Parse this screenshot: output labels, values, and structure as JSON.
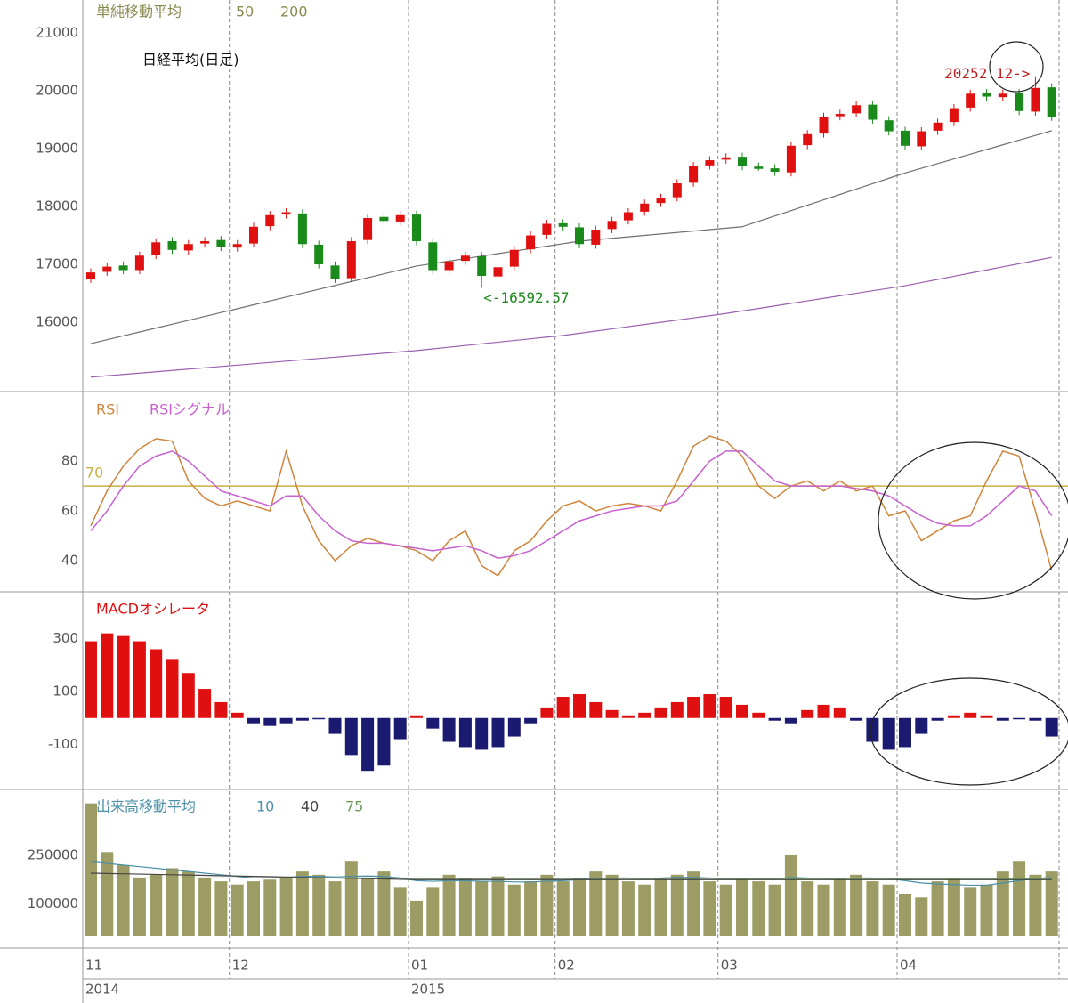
{
  "chart_data": [
    {
      "type": "candlestick",
      "title": "日経平均(日足)",
      "legend_title": "単純移動平均",
      "open": [
        16750,
        16870,
        16980,
        16900,
        17160,
        17400,
        17240,
        17360,
        17420,
        17290,
        17360,
        17660,
        17860,
        17880,
        17340,
        16980,
        16760,
        17420,
        17820,
        17740,
        17860,
        17380,
        16900,
        17060,
        17140,
        16790,
        16960,
        17260,
        17510,
        17710,
        17640,
        17340,
        17610,
        17760,
        17910,
        18060,
        18160,
        18410,
        18710,
        18810,
        18860,
        18690,
        18660,
        18590,
        19060,
        19260,
        19560,
        19610,
        19760,
        19490,
        19310,
        19040,
        19310,
        19460,
        19710,
        19960,
        19890,
        19960,
        19640,
        20060
      ],
      "high": [
        16930,
        17030,
        17050,
        17220,
        17450,
        17470,
        17420,
        17470,
        17490,
        17420,
        17720,
        17920,
        17970,
        17950,
        17410,
        17050,
        17470,
        17870,
        17890,
        17920,
        17930,
        17450,
        17120,
        17220,
        17210,
        17020,
        17320,
        17570,
        17770,
        17780,
        17710,
        17670,
        17820,
        17970,
        18120,
        18220,
        18470,
        18770,
        18870,
        18920,
        18930,
        18760,
        18730,
        19120,
        19320,
        19620,
        19670,
        19820,
        19830,
        19560,
        19380,
        19370,
        19520,
        19770,
        20020,
        20030,
        20020,
        20030,
        20252.12,
        20130
      ],
      "low": [
        16680,
        16800,
        16830,
        16830,
        17090,
        17180,
        17170,
        17290,
        17230,
        17220,
        17290,
        17590,
        17790,
        17280,
        16930,
        16680,
        16690,
        17350,
        17680,
        17670,
        17330,
        16830,
        16830,
        16990,
        16592.57,
        16720,
        16890,
        17190,
        17440,
        17580,
        17280,
        17270,
        17540,
        17690,
        17840,
        17990,
        18090,
        18340,
        18640,
        18740,
        18630,
        18620,
        18530,
        18520,
        18990,
        19190,
        19490,
        19540,
        19430,
        19230,
        18980,
        18970,
        19240,
        19390,
        19640,
        19830,
        19820,
        19580,
        19570,
        19480
      ],
      "close": [
        16860,
        16960,
        16900,
        17150,
        17380,
        17250,
        17350,
        17400,
        17300,
        17350,
        17650,
        17850,
        17900,
        17350,
        17000,
        16750,
        17400,
        17800,
        17750,
        17850,
        17400,
        16900,
        17050,
        17150,
        16800,
        16950,
        17250,
        17500,
        17700,
        17650,
        17350,
        17600,
        17750,
        17900,
        18050,
        18150,
        18400,
        18700,
        18800,
        18850,
        18700,
        18650,
        18600,
        19050,
        19250,
        19550,
        19600,
        19750,
        19500,
        19300,
        19050,
        19300,
        19450,
        19700,
        19950,
        19900,
        19950,
        19650,
        20050,
        19550
      ],
      "up_color": "#e01010",
      "down_color": "#1a8a1a",
      "ylim": [
        14800,
        21570
      ],
      "yticks": [
        16000,
        17000,
        18000,
        19000,
        20000,
        21000
      ],
      "series": [
        {
          "name": "50",
          "color": "#707070",
          "values": [
            15630,
            15697,
            15764,
            15831,
            15898,
            15965,
            16032,
            16099,
            16166,
            16233,
            16300,
            16367,
            16434,
            16501,
            16568,
            16635,
            16702,
            16769,
            16836,
            16903,
            16970,
            17013,
            17056,
            17099,
            17142,
            17185,
            17228,
            17271,
            17314,
            17357,
            17400,
            17425,
            17450,
            17475,
            17500,
            17525,
            17550,
            17575,
            17600,
            17625,
            17650,
            17743,
            17836,
            17929,
            18022,
            18115,
            18208,
            18301,
            18394,
            18487,
            18580,
            18661,
            18742,
            18823,
            18904,
            18985,
            19066,
            19147,
            19228,
            19310
          ]
        },
        {
          "name": "200",
          "color": "#9a60b0",
          "values": [
            15050,
            15073,
            15096,
            15119,
            15142,
            15165,
            15188,
            15211,
            15234,
            15257,
            15280,
            15303,
            15326,
            15349,
            15372,
            15395,
            15418,
            15441,
            15464,
            15487,
            15510,
            15539,
            15568,
            15597,
            15626,
            15655,
            15684,
            15713,
            15742,
            15770,
            15808,
            15846,
            15884,
            15922,
            15960,
            15998,
            16036,
            16074,
            16112,
            16150,
            16194,
            16237,
            16281,
            16325,
            16368,
            16412,
            16456,
            16499,
            16543,
            16586,
            16630,
            16684,
            16739,
            16793,
            16848,
            16902,
            16957,
            17011,
            17066,
            17120
          ]
        }
      ],
      "annotations": [
        "20252.12->",
        "<-16592.57"
      ]
    },
    {
      "type": "line",
      "series": [
        {
          "name": "RSI",
          "color": "#d0843a",
          "values": [
            54,
            68,
            78,
            85,
            89,
            88,
            72,
            65,
            62,
            64,
            62,
            60,
            84,
            62,
            48,
            40,
            46,
            49,
            47,
            46,
            44,
            40,
            48,
            52,
            38,
            34,
            44,
            48,
            56,
            62,
            64,
            60,
            62,
            63,
            62,
            60,
            72,
            86,
            90,
            88,
            82,
            70,
            65,
            70,
            72,
            68,
            72,
            68,
            70,
            58,
            60,
            48,
            52,
            56,
            58,
            72,
            84,
            82,
            60,
            36
          ]
        },
        {
          "name": "RSIシグナル",
          "color": "#c860d0",
          "values": [
            52,
            60,
            70,
            78,
            82,
            84,
            80,
            74,
            68,
            66,
            64,
            62,
            66,
            66,
            58,
            52,
            48,
            47,
            47,
            46,
            45,
            44,
            45,
            46,
            44,
            41,
            42,
            44,
            48,
            52,
            56,
            58,
            60,
            61,
            62,
            62,
            64,
            72,
            80,
            84,
            84,
            78,
            72,
            70,
            70,
            70,
            70,
            69,
            68,
            66,
            62,
            58,
            55,
            54,
            54,
            58,
            64,
            70,
            68,
            58
          ]
        }
      ],
      "reference_line": 70,
      "reference_color": "#c8b040",
      "ylim": [
        27.5,
        107.9
      ],
      "yticks": [
        40,
        60,
        80
      ]
    },
    {
      "type": "bar",
      "legend_title": "MACDオシレータ",
      "values": [
        290,
        320,
        310,
        290,
        260,
        220,
        170,
        110,
        60,
        20,
        -20,
        -30,
        -20,
        -10,
        -5,
        -60,
        -140,
        -200,
        -180,
        -80,
        10,
        -40,
        -90,
        -110,
        -120,
        -110,
        -70,
        -20,
        40,
        80,
        90,
        60,
        30,
        10,
        20,
        40,
        60,
        80,
        90,
        80,
        50,
        20,
        -10,
        -20,
        30,
        50,
        40,
        -10,
        -90,
        -120,
        -110,
        -60,
        -10,
        10,
        20,
        10,
        -10,
        -5,
        -10,
        -70
      ],
      "positive_color": "#e01010",
      "negative_color": "#1a1a70",
      "ylim": [
        -270,
        477
      ],
      "yticks": [
        -100,
        100,
        300
      ]
    },
    {
      "type": "bar",
      "legend_title": "出来高移動平均",
      "values": [
        410000,
        260000,
        220000,
        180000,
        190000,
        210000,
        200000,
        180000,
        170000,
        160000,
        170000,
        175000,
        180000,
        200000,
        190000,
        170000,
        230000,
        180000,
        200000,
        150000,
        110000,
        150000,
        190000,
        180000,
        170000,
        185000,
        160000,
        170000,
        190000,
        170000,
        180000,
        200000,
        190000,
        170000,
        160000,
        180000,
        190000,
        200000,
        170000,
        160000,
        180000,
        170000,
        160000,
        250000,
        170000,
        160000,
        180000,
        190000,
        170000,
        160000,
        130000,
        120000,
        170000,
        180000,
        150000,
        160000,
        200000,
        230000,
        190000,
        200000
      ],
      "color": "#9c9c64",
      "ylim": [
        0,
        453000
      ],
      "yticks": [
        100000,
        250000
      ],
      "series": [
        {
          "name": "10",
          "color": "#4a8fa8",
          "values": [
            230000,
            225000,
            220000,
            215000,
            210000,
            205000,
            200000,
            195000,
            190000,
            185000,
            180000,
            180000,
            182000,
            185000,
            185000,
            183000,
            185000,
            186000,
            185000,
            180000,
            172000,
            170000,
            172000,
            172000,
            170000,
            170000,
            168000,
            168000,
            170000,
            172000,
            175000,
            178000,
            180000,
            180000,
            178000,
            180000,
            182000,
            182000,
            180000,
            178000,
            178000,
            176000,
            176000,
            182000,
            180000,
            178000,
            178000,
            180000,
            180000,
            178000,
            172000,
            165000,
            162000,
            160000,
            158000,
            158000,
            165000,
            172000,
            178000,
            182000
          ]
        },
        {
          "name": "40",
          "color": "#444444",
          "values": [
            195000,
            194000,
            193000,
            192000,
            191000,
            190000,
            189000,
            188000,
            187000,
            186000,
            185000,
            184000,
            183000,
            182000,
            181000,
            180000,
            179000,
            178000,
            177000,
            176000,
            175000,
            175000,
            175000,
            175000,
            175000,
            175000,
            175000,
            175000,
            175000,
            175000,
            175000,
            175000,
            175000,
            175000,
            175000,
            175000,
            175000,
            175000,
            175000,
            175000,
            175000,
            175000,
            175000,
            175000,
            175000,
            175000,
            175000,
            175000,
            175000,
            175000,
            175000,
            175000,
            175000,
            175000,
            175000,
            175000,
            175000,
            175000,
            175000,
            175000
          ]
        },
        {
          "name": "75",
          "color": "#6a9a5a",
          "values": [
            180000,
            180000,
            180000,
            180000,
            180000,
            180000,
            180000,
            180000,
            180000,
            180000,
            180000,
            180000,
            180000,
            180000,
            180000,
            180000,
            180000,
            180000,
            180000,
            180000,
            179000,
            179000,
            179000,
            179000,
            179000,
            179000,
            179000,
            179000,
            179000,
            179000,
            179000,
            179000,
            179000,
            179000,
            179000,
            179000,
            179000,
            179000,
            179000,
            179000,
            178000,
            178000,
            178000,
            178000,
            178000,
            178000,
            178000,
            178000,
            178000,
            178000,
            178000,
            178000,
            178000,
            178000,
            178000,
            178000,
            178000,
            178000,
            178000,
            178000
          ]
        }
      ],
      "categories": [
        "11",
        null,
        null,
        null,
        null,
        null,
        null,
        null,
        null,
        "12",
        null,
        null,
        null,
        null,
        null,
        null,
        null,
        null,
        null,
        null,
        "01",
        null,
        null,
        null,
        null,
        null,
        null,
        null,
        null,
        "02",
        null,
        null,
        null,
        null,
        null,
        null,
        null,
        null,
        null,
        "03",
        null,
        null,
        null,
        null,
        null,
        null,
        null,
        null,
        null,
        null,
        "04",
        null,
        null,
        null,
        null,
        null,
        null,
        null,
        null,
        null
      ],
      "category_years": [
        "2014",
        null,
        null,
        null,
        null,
        null,
        null,
        null,
        null,
        null,
        null,
        null,
        null,
        null,
        null,
        null,
        null,
        null,
        null,
        null,
        "2015",
        null,
        null,
        null,
        null,
        null,
        null,
        null,
        null,
        null,
        null,
        null,
        null,
        null,
        null,
        null,
        null,
        null,
        null,
        null,
        null,
        null,
        null,
        null,
        null,
        null,
        null,
        null,
        null,
        null,
        null,
        null,
        null,
        null,
        null,
        null,
        null,
        null,
        null,
        null
      ]
    }
  ]
}
